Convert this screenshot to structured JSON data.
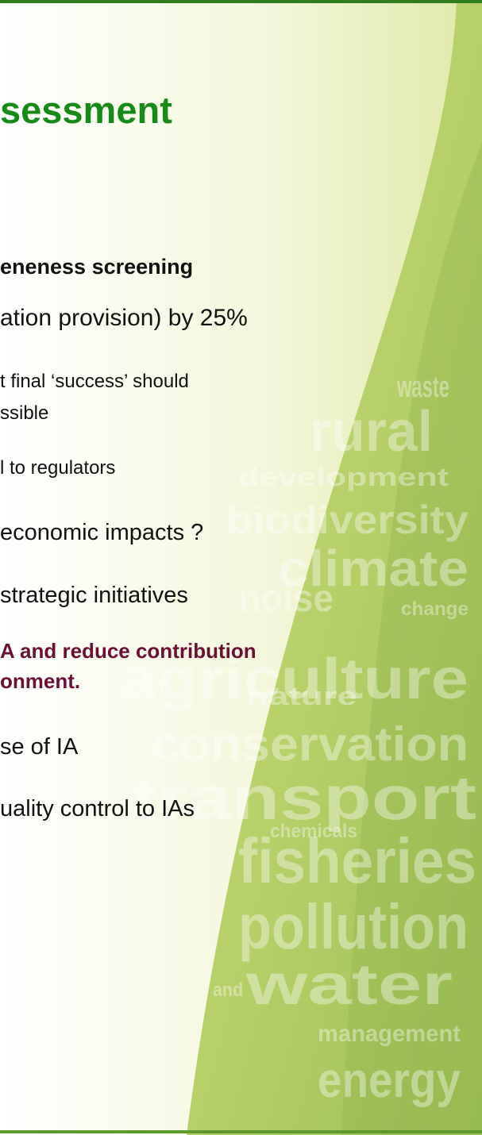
{
  "title": "sessment",
  "bullets": [
    [
      "eneness screening"
    ],
    [
      "ation provision) by 25%"
    ],
    [
      "t final ‘success’ should",
      "ssible"
    ],
    [
      "l to regulators"
    ],
    [
      "economic impacts ?"
    ],
    [
      "strategic initiatives"
    ],
    [
      "A and reduce contribution",
      "onment."
    ],
    [
      "se of IA"
    ],
    [
      "uality control to IAs"
    ]
  ],
  "background_words": [
    "waste",
    "rural",
    "development",
    "biodiversity",
    "climate",
    "noise",
    "change",
    "agriculture",
    "nature",
    "conservation",
    "transport",
    "chemicals",
    "fisheries",
    "pollution",
    "and",
    "water",
    "management",
    "energy"
  ]
}
